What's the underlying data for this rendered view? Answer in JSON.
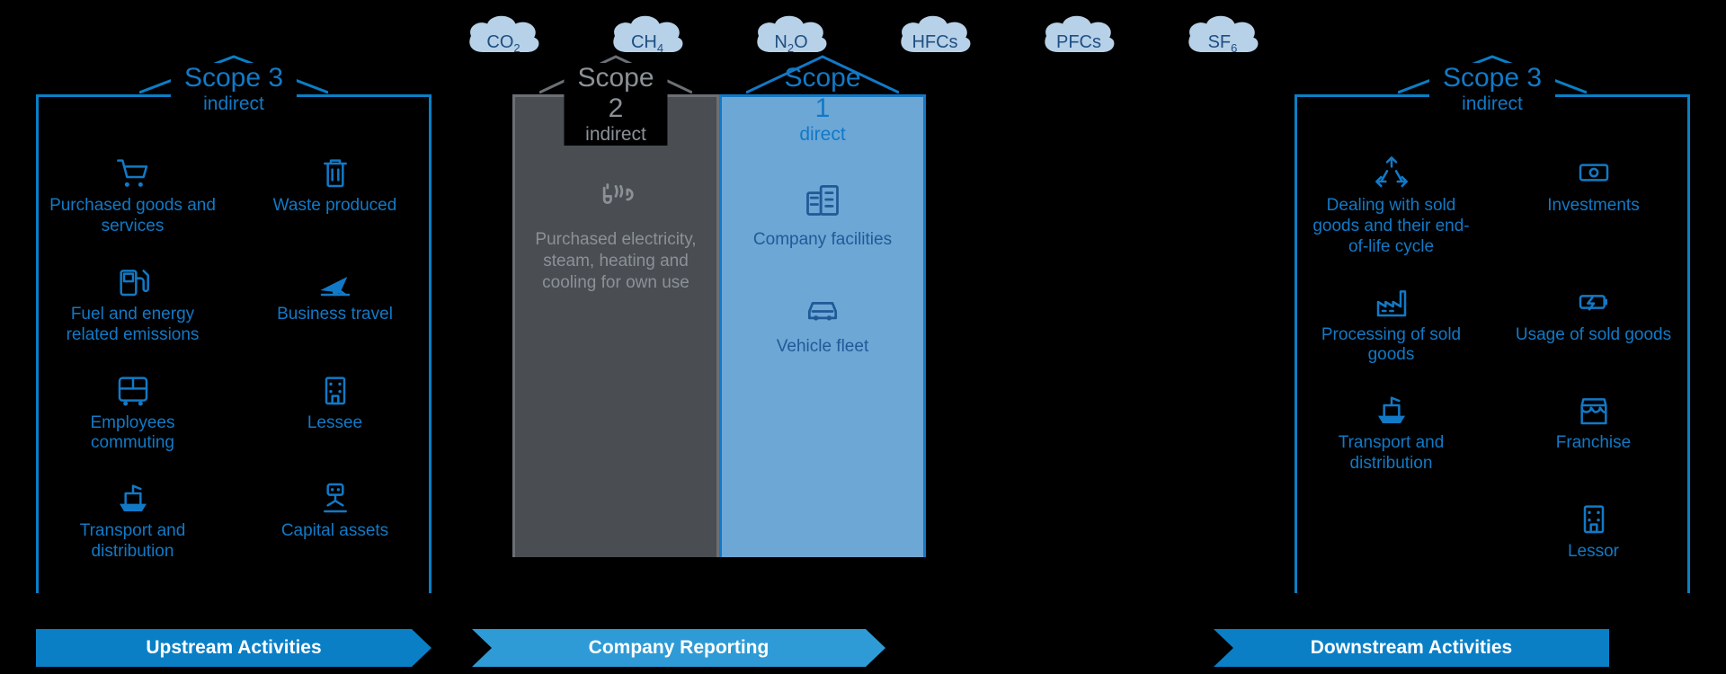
{
  "colors": {
    "background": "#000000",
    "cloud_fill": "#b7d1e8",
    "cloud_text": "#1f4f82",
    "scope3_border": "#0a7fc6",
    "scope3_text": "#1279c6",
    "scope2_border": "#6b7076",
    "scope2_fill": "#4a4e53",
    "scope2_text": "#8b9197",
    "scope1_border": "#1279c6",
    "scope1_fill": "#6da7d6",
    "scope1_text": "#1f5a97",
    "arrow_upstream": "#0a7fc6",
    "arrow_company": "#2e9bd6",
    "arrow_downstream": "#0a7fc6",
    "arrow_text": "#ffffff"
  },
  "fonts": {
    "family": "Arial",
    "scope_title_size": 30,
    "scope_sub_size": 21,
    "item_label_size": 19,
    "cloud_label_size": 20,
    "arrow_text_size": 21
  },
  "clouds": [
    {
      "label": "CO",
      "sub": "2"
    },
    {
      "label": "CH",
      "sub": "4"
    },
    {
      "label": "N",
      "sub": "2",
      "suffix": "O"
    },
    {
      "label": "HFCs",
      "sub": ""
    },
    {
      "label": "PFCs",
      "sub": ""
    },
    {
      "label": "SF",
      "sub": "6"
    }
  ],
  "scope3_left": {
    "title": "Scope 3",
    "subtitle": "indirect",
    "items": [
      {
        "icon": "cart",
        "label": "Purchased goods and services"
      },
      {
        "icon": "trash",
        "label": "Waste produced"
      },
      {
        "icon": "pump",
        "label": "Fuel and energy related emissions"
      },
      {
        "icon": "plane",
        "label": "Business travel"
      },
      {
        "icon": "bus",
        "label": "Employees commuting"
      },
      {
        "icon": "building",
        "label": "Lessee"
      },
      {
        "icon": "ship",
        "label": "Transport and distribution"
      },
      {
        "icon": "robot",
        "label": "Capital assets"
      }
    ]
  },
  "scope2": {
    "title": "Scope 2",
    "subtitle": "indirect",
    "items": [
      {
        "icon": "energy",
        "label": "Purchased electricity, steam, heating and cooling for own use"
      }
    ]
  },
  "scope1": {
    "title": "Scope 1",
    "subtitle": "direct",
    "items": [
      {
        "icon": "buildings",
        "label": "Company facilities"
      },
      {
        "icon": "car",
        "label": "Vehicle fleet"
      }
    ]
  },
  "scope3_right": {
    "title": "Scope 3",
    "subtitle": "indirect",
    "items": [
      {
        "icon": "recycle",
        "label": "Dealing with sold goods and their end-of-life cycle"
      },
      {
        "icon": "money",
        "label": "Investments"
      },
      {
        "icon": "factory",
        "label": "Processing of sold goods"
      },
      {
        "icon": "battery",
        "label": "Usage of sold goods"
      },
      {
        "icon": "ship",
        "label": "Transport and distribution"
      },
      {
        "icon": "shop",
        "label": "Franchise"
      },
      {
        "icon": "blank",
        "label": ""
      },
      {
        "icon": "building",
        "label": "Lessor"
      }
    ]
  },
  "arrows": {
    "upstream": "Upstream Activities",
    "company": "Company Reporting",
    "downstream": "Downstream Activities"
  }
}
